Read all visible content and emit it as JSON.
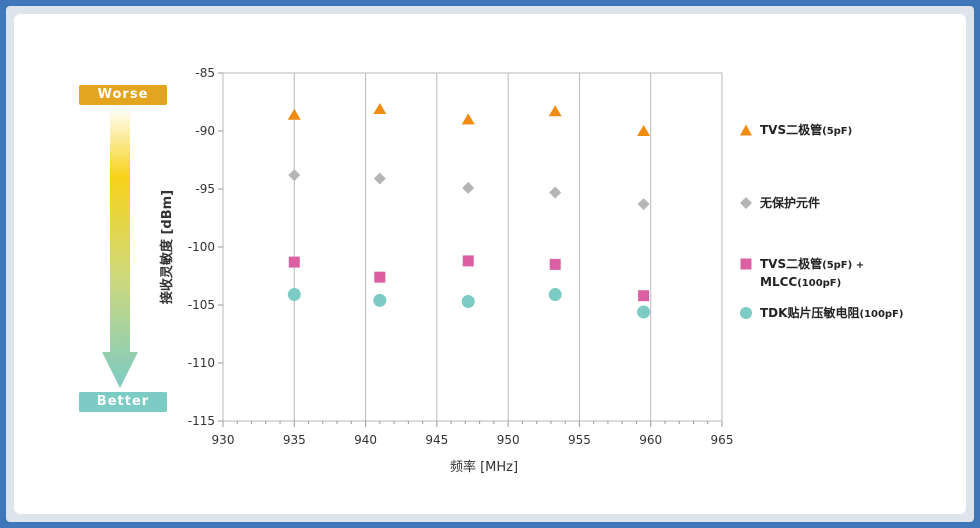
{
  "indicator": {
    "worse_label": "Worse",
    "better_label": "Better",
    "colors": {
      "worse": "#e3a41f",
      "mid": "#f2cc18",
      "better": "#7ccbc4"
    }
  },
  "chart_data": {
    "type": "scatter",
    "xlabel": "频率 [MHz]",
    "ylabel": "接收灵敏度 [dBm]",
    "xlim": [
      930,
      965
    ],
    "ylim": [
      -115,
      -85
    ],
    "xticks": [
      930,
      935,
      940,
      945,
      950,
      955,
      960,
      965
    ],
    "yticks": [
      -85,
      -90,
      -95,
      -100,
      -105,
      -110,
      -115
    ],
    "grid": "vertical",
    "legend_position": "right",
    "series": [
      {
        "name": "TVS二极管(5pF)",
        "marker": "triangle",
        "color": "#ef8c11",
        "points": [
          [
            935,
            -88.6
          ],
          [
            941,
            -88.1
          ],
          [
            947.2,
            -89.0
          ],
          [
            953.3,
            -88.3
          ],
          [
            959.5,
            -90.0
          ]
        ]
      },
      {
        "name": "无保护元件",
        "marker": "diamond",
        "color": "#b5b5b5",
        "points": [
          [
            935,
            -93.8
          ],
          [
            941,
            -94.1
          ],
          [
            947.2,
            -94.9
          ],
          [
            953.3,
            -95.3
          ],
          [
            959.5,
            -96.3
          ]
        ]
      },
      {
        "name": "TVS二极管(5pF) + MLCC(100pF)",
        "marker": "square",
        "color": "#dd5fa3",
        "points": [
          [
            935,
            -101.3
          ],
          [
            941,
            -102.6
          ],
          [
            947.2,
            -101.2
          ],
          [
            953.3,
            -101.5
          ],
          [
            959.5,
            -104.2
          ]
        ]
      },
      {
        "name": "TDK贴片压敏电阻(100pF)",
        "marker": "circle",
        "color": "#7ccbc4",
        "points": [
          [
            935,
            -104.1
          ],
          [
            941,
            -104.6
          ],
          [
            947.2,
            -104.7
          ],
          [
            953.3,
            -104.1
          ],
          [
            959.5,
            -105.6
          ]
        ]
      }
    ]
  },
  "legend": [
    {
      "line1": "TVS二极管",
      "suffix1": "(5pF)",
      "line2": "",
      "suffix2": ""
    },
    {
      "line1": "无保护元件",
      "suffix1": "",
      "line2": "",
      "suffix2": ""
    },
    {
      "line1": "TVS二极管",
      "suffix1": "(5pF) +",
      "line2": "MLCC",
      "suffix2": "(100pF)"
    },
    {
      "line1": "TDK贴片压敏电阻",
      "suffix1": "(100pF)",
      "line2": "",
      "suffix2": ""
    }
  ]
}
